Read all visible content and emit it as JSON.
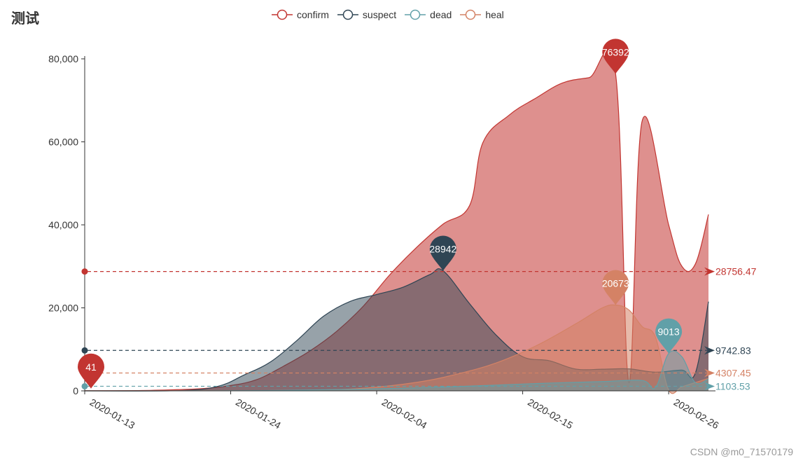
{
  "title": "测试",
  "watermark": "CSDN @m0_71570179",
  "colors": {
    "confirm": "#c23531",
    "suspect": "#2f4554",
    "dead": "#61a0a8",
    "heal": "#d48265"
  },
  "chart_data": {
    "type": "area",
    "x_tick_labels": [
      "2020-01-13",
      "2020-01-24",
      "2020-02-04",
      "2020-02-15",
      "2020-02-26"
    ],
    "x_start": "2020-01-13",
    "x_end": "2020-02-29",
    "ylim": [
      0,
      80000
    ],
    "y_ticks": [
      0,
      20000,
      40000,
      60000,
      80000
    ],
    "y_tick_labels": [
      "0",
      "20,000",
      "40,000",
      "60,000",
      "80,000"
    ],
    "grid": false,
    "legend_position": "top",
    "series": [
      {
        "name": "confirm",
        "key": "confirm",
        "points": [
          [
            "2020-01-13",
            41
          ],
          [
            "2020-01-17",
            62
          ],
          [
            "2020-01-20",
            291
          ],
          [
            "2020-01-22",
            571
          ],
          [
            "2020-01-24",
            1287
          ],
          [
            "2020-01-26",
            2744
          ],
          [
            "2020-01-28",
            5974
          ],
          [
            "2020-01-30",
            9692
          ],
          [
            "2020-02-01",
            14380
          ],
          [
            "2020-02-03",
            20438
          ],
          [
            "2020-02-05",
            28018
          ],
          [
            "2020-02-07",
            34546
          ],
          [
            "2020-02-09",
            40171
          ],
          [
            "2020-02-11",
            44653
          ],
          [
            "2020-02-12",
            59804
          ],
          [
            "2020-02-14",
            66492
          ],
          [
            "2020-02-16",
            70548
          ],
          [
            "2020-02-18",
            74185
          ],
          [
            "2020-02-20",
            75465
          ],
          [
            "2020-02-22",
            76392
          ],
          [
            "2020-02-23",
            2000
          ],
          [
            "2020-02-24",
            65000
          ],
          [
            "2020-02-26",
            40000
          ],
          [
            "2020-02-27",
            30000
          ],
          [
            "2020-02-28",
            30500
          ],
          [
            "2020-02-29",
            42500
          ]
        ],
        "markers": {
          "max": {
            "date": "2020-02-22",
            "value": 76392,
            "label": "76392"
          },
          "min": {
            "date": "2020-01-13",
            "value": 41,
            "label": "41"
          },
          "average": {
            "value": 28756.47,
            "label": "28756.47"
          }
        }
      },
      {
        "name": "suspect",
        "key": "suspect",
        "points": [
          [
            "2020-01-13",
            0
          ],
          [
            "2020-01-20",
            54
          ],
          [
            "2020-01-23",
            1072
          ],
          [
            "2020-01-25",
            3806
          ],
          [
            "2020-01-27",
            6973
          ],
          [
            "2020-01-29",
            12167
          ],
          [
            "2020-01-31",
            17988
          ],
          [
            "2020-02-02",
            21558
          ],
          [
            "2020-02-04",
            23214
          ],
          [
            "2020-02-06",
            25000
          ],
          [
            "2020-02-08",
            28000
          ],
          [
            "2020-02-09",
            28942
          ],
          [
            "2020-02-11",
            21000
          ],
          [
            "2020-02-13",
            13435
          ],
          [
            "2020-02-15",
            8228
          ],
          [
            "2020-02-17",
            7264
          ],
          [
            "2020-02-19",
            5248
          ],
          [
            "2020-02-21",
            5206
          ],
          [
            "2020-02-23",
            5300
          ],
          [
            "2020-02-25",
            4500
          ],
          [
            "2020-02-27",
            5000
          ],
          [
            "2020-02-28",
            4200
          ],
          [
            "2020-02-29",
            21500
          ]
        ],
        "markers": {
          "max": {
            "date": "2020-02-09",
            "value": 28942,
            "label": "28942"
          },
          "min": {
            "date": "2020-01-13",
            "value": 0,
            "label": ""
          },
          "average": {
            "value": 9742.83,
            "label": "9742.83"
          }
        }
      },
      {
        "name": "dead",
        "key": "dead",
        "points": [
          [
            "2020-01-13",
            0
          ],
          [
            "2020-01-20",
            6
          ],
          [
            "2020-01-24",
            41
          ],
          [
            "2020-01-28",
            132
          ],
          [
            "2020-02-01",
            304
          ],
          [
            "2020-02-05",
            563
          ],
          [
            "2020-02-09",
            908
          ],
          [
            "2020-02-13",
            1380
          ],
          [
            "2020-02-17",
            1870
          ],
          [
            "2020-02-21",
            2236
          ],
          [
            "2020-02-24",
            2500
          ],
          [
            "2020-02-25",
            800
          ],
          [
            "2020-02-26",
            9013
          ],
          [
            "2020-02-27",
            8200
          ],
          [
            "2020-02-28",
            2000
          ],
          [
            "2020-02-29",
            2900
          ]
        ],
        "markers": {
          "max": {
            "date": "2020-02-26",
            "value": 9013,
            "label": "9013"
          },
          "min": {
            "date": "2020-01-13",
            "value": 0,
            "label": ""
          },
          "average": {
            "value": 1103.53,
            "label": "1103.53"
          }
        }
      },
      {
        "name": "heal",
        "key": "heal",
        "points": [
          [
            "2020-01-13",
            0
          ],
          [
            "2020-01-24",
            38
          ],
          [
            "2020-01-30",
            171
          ],
          [
            "2020-02-03",
            632
          ],
          [
            "2020-02-07",
            2050
          ],
          [
            "2020-02-10",
            3996
          ],
          [
            "2020-02-13",
            6723
          ],
          [
            "2020-02-16",
            10844
          ],
          [
            "2020-02-19",
            16155
          ],
          [
            "2020-02-21",
            20000
          ],
          [
            "2020-02-22",
            20673
          ],
          [
            "2020-02-23",
            19500
          ],
          [
            "2020-02-24",
            15500
          ],
          [
            "2020-02-25",
            13000
          ],
          [
            "2020-02-26",
            200
          ],
          [
            "2020-02-27",
            1000
          ],
          [
            "2020-02-28",
            2000
          ],
          [
            "2020-02-29",
            3000
          ]
        ],
        "markers": {
          "max": {
            "date": "2020-02-22",
            "value": 20673,
            "label": "20673"
          },
          "min": {
            "date": "2020-01-13",
            "value": 0,
            "label": ""
          },
          "average": {
            "value": 4307.45,
            "label": "4307.45"
          }
        }
      }
    ]
  }
}
